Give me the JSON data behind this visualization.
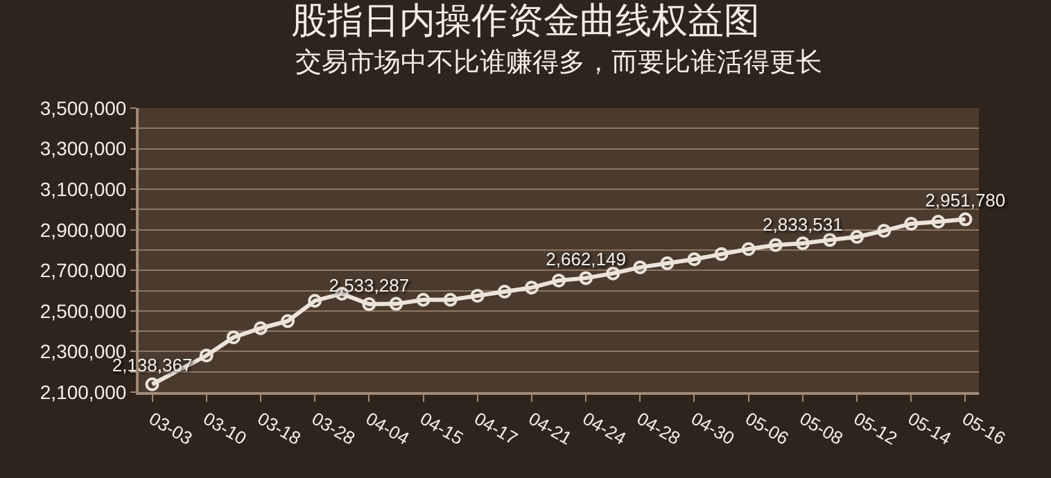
{
  "chart_data": {
    "type": "line",
    "title": "股指日内操作资金曲线权益图",
    "subtitle": "交易市场中不比谁赚得多，而要比谁活得更长",
    "categories": [
      "03-03",
      null,
      "03-10",
      null,
      "03-18",
      null,
      "03-28",
      null,
      "04-04",
      null,
      "04-15",
      null,
      "04-17",
      null,
      "04-21",
      null,
      "04-24",
      null,
      "04-28",
      null,
      "04-30",
      null,
      "05-06",
      null,
      "05-08",
      null,
      "05-12",
      null,
      "05-14",
      null,
      "05-16"
    ],
    "series": [
      {
        "color": "#ece4da",
        "values": [
          2138367,
          null,
          2280000,
          2370000,
          2415000,
          2450000,
          2550000,
          2585000,
          2533287,
          2535000,
          2555000,
          2555000,
          2575000,
          2595000,
          2615000,
          2650000,
          2662149,
          2685000,
          2715000,
          2735000,
          2755000,
          2780000,
          2805000,
          2825000,
          2833531,
          2850000,
          2865000,
          2895000,
          2930000,
          2940000,
          2951780
        ],
        "value_labels": [
          "2,138,367",
          null,
          null,
          null,
          null,
          null,
          null,
          null,
          "2,533,287",
          null,
          null,
          null,
          null,
          null,
          null,
          null,
          "2,662,149",
          null,
          null,
          null,
          null,
          null,
          null,
          null,
          "2,833,531",
          null,
          null,
          null,
          null,
          null,
          "2,951,780"
        ]
      }
    ],
    "ylim": [
      2100000,
      3500000
    ],
    "yticks": [
      {
        "value": 2100000,
        "label": "2,100,000"
      },
      {
        "value": 2200000,
        "label": null
      },
      {
        "value": 2300000,
        "label": "2,300,000"
      },
      {
        "value": 2400000,
        "label": null
      },
      {
        "value": 2500000,
        "label": "2,500,000"
      },
      {
        "value": 2600000,
        "label": null
      },
      {
        "value": 2700000,
        "label": "2,700,000"
      },
      {
        "value": 2800000,
        "label": null
      },
      {
        "value": 2900000,
        "label": "2,900,000"
      },
      {
        "value": 3000000,
        "label": null
      },
      {
        "value": 3100000,
        "label": "3,100,000"
      },
      {
        "value": 3200000,
        "label": null
      },
      {
        "value": 3300000,
        "label": "3,300,000"
      },
      {
        "value": 3400000,
        "label": null
      },
      {
        "value": 3500000,
        "label": "3,500,000"
      }
    ],
    "grid": "y",
    "marker": "circle",
    "line_style": "solid"
  }
}
